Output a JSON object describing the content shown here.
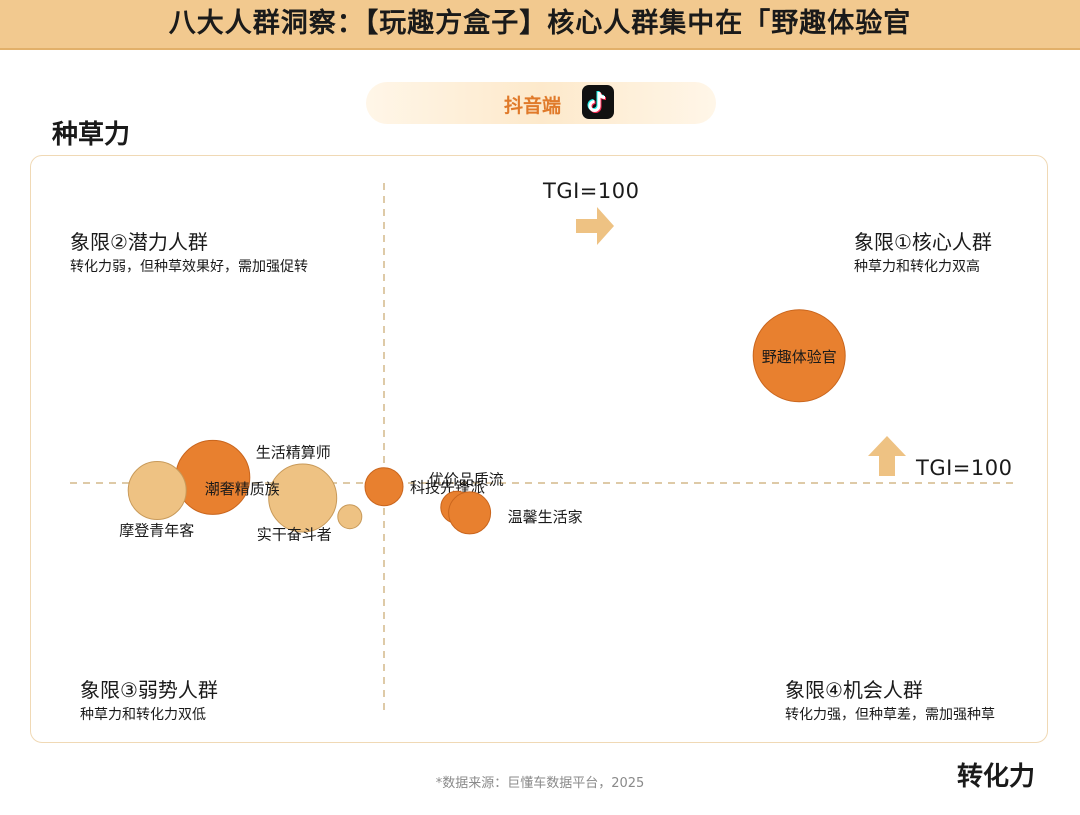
{
  "header": {
    "title": "八大人群洞察：【玩趣方盒子】核心人群集中在「野趣体验官"
  },
  "platform": {
    "label": "抖音端",
    "icon": "tiktok-icon"
  },
  "axes": {
    "y_title": "种草力",
    "x_title": "转化力"
  },
  "quadrants": [
    {
      "title": "象限①核心人群",
      "subtitle": "种草力和转化力双高"
    },
    {
      "title": "象限②潜力人群",
      "subtitle": "转化力弱，但种草效果好，需加强促转"
    },
    {
      "title": "象限③弱势人群",
      "subtitle": "种草力和转化力双低"
    },
    {
      "title": "象限④机会人群",
      "subtitle": "转化力强，但种草差，需加强种草"
    }
  ],
  "tgi": {
    "x_label": "TGI=100",
    "y_label": "TGI=100"
  },
  "source": "*数据来源：巨懂车数据平台，2025",
  "colors": {
    "dark_bubble": "#e8802f",
    "light_bubble": "#eec283",
    "header_bg": "#f2c98f",
    "arrow": "#eec283",
    "guide_line": "#d4b98a"
  },
  "chart_data": {
    "type": "scatter",
    "xlabel": "转化力",
    "ylabel": "种草力",
    "reference": {
      "x": 100,
      "y": 100
    },
    "xlim": [
      40,
      210
    ],
    "ylim": [
      70,
      200
    ],
    "points": [
      {
        "label": "野趣体验官",
        "x": 197,
        "y": 168,
        "size": 46,
        "tone": "dark"
      },
      {
        "label": "生活精算师",
        "x": 60,
        "y": 103,
        "size": 37,
        "tone": "dark"
      },
      {
        "label": "摩登青年客",
        "x": 47,
        "y": 96,
        "size": 29,
        "tone": "light"
      },
      {
        "label": "潮奢精质族",
        "x": 81,
        "y": 92,
        "size": 34,
        "tone": "light"
      },
      {
        "label": "科技先锋派",
        "x": 100,
        "y": 98,
        "size": 19,
        "tone": "dark"
      },
      {
        "label": "实干奋斗者",
        "x": 92,
        "y": 82,
        "size": 12,
        "tone": "light"
      },
      {
        "label": "优价品质流",
        "x": 117,
        "y": 87,
        "size": 16,
        "tone": "dark"
      },
      {
        "label": "温馨生活家",
        "x": 120,
        "y": 84,
        "size": 21,
        "tone": "dark"
      }
    ]
  }
}
